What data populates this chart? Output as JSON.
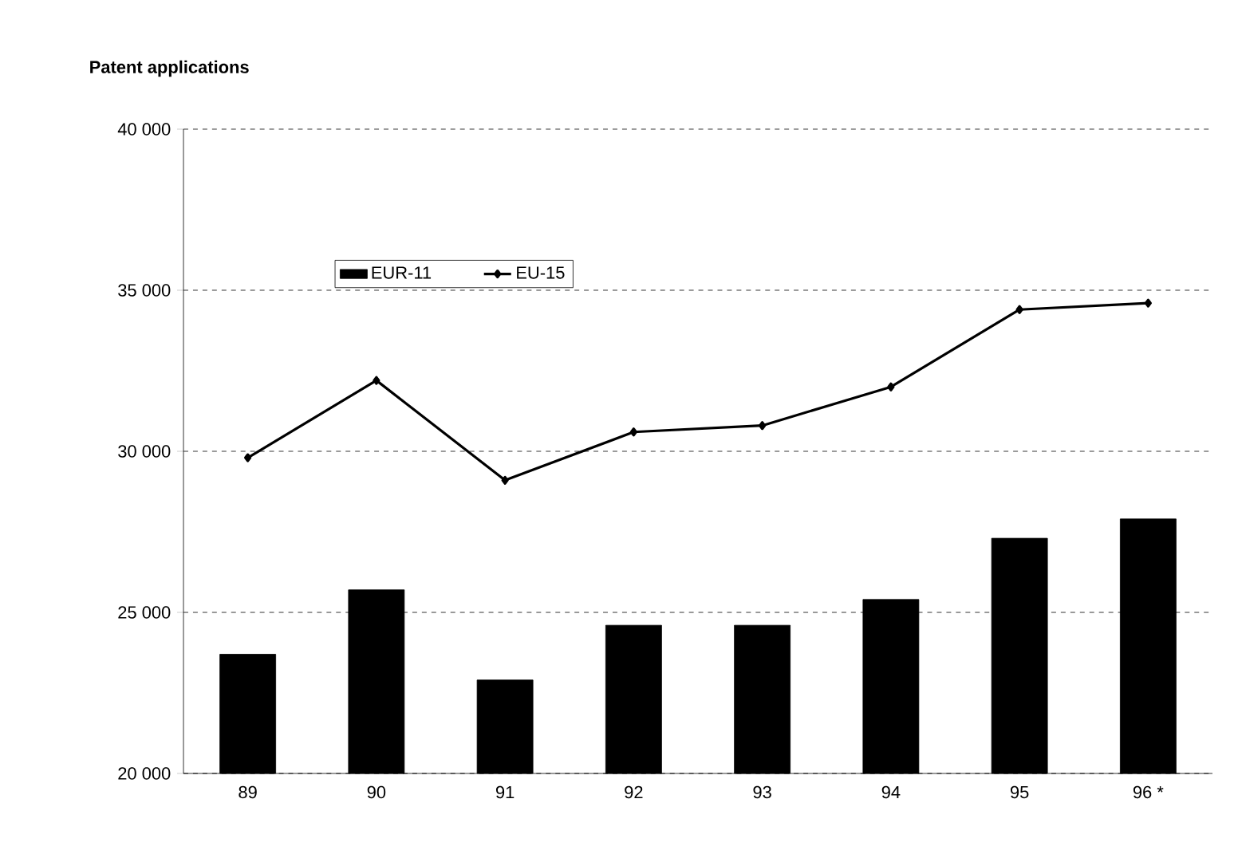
{
  "chart_data": {
    "type": "bar",
    "title": "Patent applications",
    "categories": [
      "89",
      "90",
      "91",
      "92",
      "93",
      "94",
      "95",
      "96 *"
    ],
    "series": [
      {
        "name": "EUR-11",
        "color": "#000000",
        "values": [
          23700,
          25700,
          22900,
          24600,
          24600,
          25400,
          27300,
          27900
        ]
      },
      {
        "name": "EU-15",
        "type": "line",
        "color": "#000000",
        "marker": "diamond",
        "values": [
          29800,
          32200,
          29100,
          30600,
          30800,
          32000,
          34400,
          34600
        ]
      }
    ],
    "ylim": [
      20000,
      40000
    ],
    "yticks": [
      {
        "value": 20000,
        "label": "20 000"
      },
      {
        "value": 25000,
        "label": "25 000"
      },
      {
        "value": 30000,
        "label": "30 000"
      },
      {
        "value": 35000,
        "label": "35 000"
      },
      {
        "value": 40000,
        "label": "40 000"
      }
    ],
    "grid": "y",
    "legend": "top left"
  }
}
